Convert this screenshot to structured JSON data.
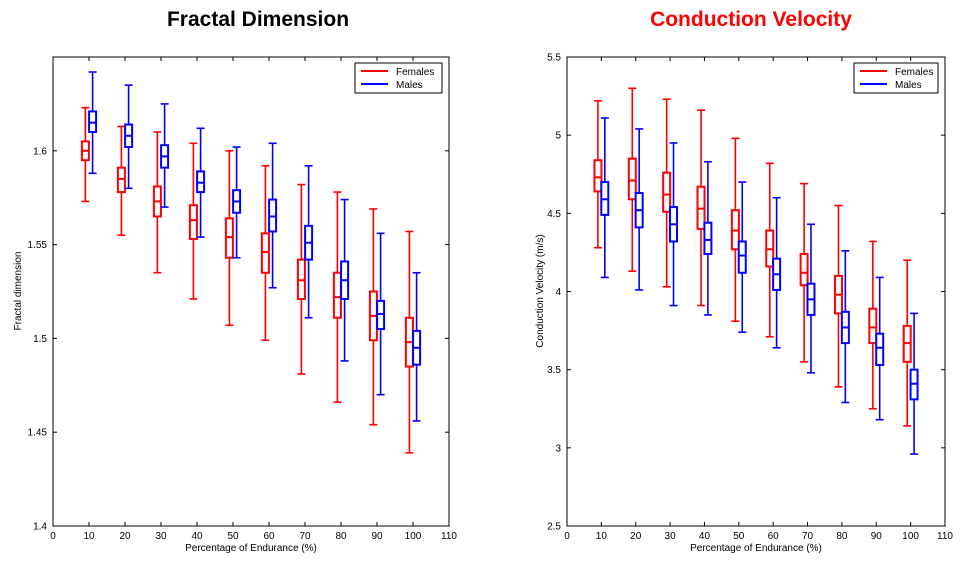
{
  "chart_data": [
    {
      "type": "boxplot",
      "title": "Fractal Dimension",
      "xlabel": "Percentage of Endurance (%)",
      "ylabel": "Fractal dimension",
      "xlim": [
        0,
        110
      ],
      "ylim": [
        1.4,
        1.65
      ],
      "xticks": [
        "0",
        "10",
        "20",
        "30",
        "40",
        "50",
        "60",
        "70",
        "80",
        "90",
        "100",
        "110"
      ],
      "yticks": [
        "1.4",
        "1.45",
        "1.5",
        "1.55",
        "1.6"
      ],
      "grid": false,
      "legend": "top-right",
      "colors": {
        "title": "#000000",
        "Females": "#ff0000",
        "Males": "#0000ff"
      },
      "series": [
        {
          "name": "Females",
          "x": [
            9,
            19,
            29,
            39,
            49,
            59,
            69,
            79,
            89,
            99
          ],
          "min": [
            1.573,
            1.555,
            1.535,
            1.521,
            1.507,
            1.499,
            1.481,
            1.466,
            1.454,
            1.439
          ],
          "q1": [
            1.595,
            1.578,
            1.565,
            1.553,
            1.543,
            1.535,
            1.521,
            1.511,
            1.499,
            1.485
          ],
          "median": [
            1.6,
            1.585,
            1.573,
            1.563,
            1.554,
            1.546,
            1.531,
            1.522,
            1.512,
            1.498
          ],
          "q3": [
            1.605,
            1.591,
            1.581,
            1.571,
            1.564,
            1.556,
            1.542,
            1.535,
            1.525,
            1.511
          ],
          "max": [
            1.623,
            1.613,
            1.61,
            1.604,
            1.6,
            1.592,
            1.582,
            1.578,
            1.569,
            1.557
          ]
        },
        {
          "name": "Males",
          "x": [
            11,
            21,
            31,
            41,
            51,
            61,
            71,
            81,
            91,
            101
          ],
          "min": [
            1.588,
            1.58,
            1.57,
            1.554,
            1.543,
            1.527,
            1.511,
            1.488,
            1.47,
            1.456
          ],
          "q1": [
            1.61,
            1.602,
            1.591,
            1.578,
            1.567,
            1.557,
            1.542,
            1.521,
            1.505,
            1.486
          ],
          "median": [
            1.615,
            1.608,
            1.597,
            1.583,
            1.573,
            1.565,
            1.551,
            1.531,
            1.513,
            1.495
          ],
          "q3": [
            1.621,
            1.614,
            1.603,
            1.589,
            1.579,
            1.574,
            1.56,
            1.541,
            1.52,
            1.504
          ],
          "max": [
            1.642,
            1.635,
            1.625,
            1.612,
            1.602,
            1.604,
            1.592,
            1.574,
            1.556,
            1.535
          ]
        }
      ]
    },
    {
      "type": "boxplot",
      "title": "Conduction Velocity",
      "xlabel": "Percentage of Endurance (%)",
      "ylabel": "Conduction Velocity (m/s)",
      "xlim": [
        0,
        110
      ],
      "ylim": [
        2.5,
        5.5
      ],
      "xticks": [
        "0",
        "10",
        "20",
        "30",
        "40",
        "50",
        "60",
        "70",
        "80",
        "90",
        "100",
        "110"
      ],
      "yticks": [
        "2.5",
        "3",
        "3.5",
        "4",
        "4.5",
        "5",
        "5.5"
      ],
      "grid": false,
      "legend": "top-right",
      "colors": {
        "title": "#ff0000",
        "Females": "#ff0000",
        "Males": "#0000ff"
      },
      "series": [
        {
          "name": "Females",
          "x": [
            9,
            19,
            29,
            39,
            49,
            59,
            69,
            79,
            89,
            99
          ],
          "min": [
            4.28,
            4.13,
            4.03,
            3.91,
            3.81,
            3.71,
            3.55,
            3.39,
            3.25,
            3.14
          ],
          "q1": [
            4.64,
            4.59,
            4.51,
            4.4,
            4.27,
            4.16,
            4.04,
            3.86,
            3.67,
            3.55
          ],
          "median": [
            4.73,
            4.71,
            4.62,
            4.53,
            4.39,
            4.27,
            4.12,
            3.98,
            3.77,
            3.67
          ],
          "q3": [
            4.84,
            4.85,
            4.76,
            4.67,
            4.52,
            4.39,
            4.24,
            4.1,
            3.89,
            3.78
          ],
          "max": [
            5.22,
            5.3,
            5.23,
            5.16,
            4.98,
            4.82,
            4.69,
            4.55,
            4.32,
            4.2
          ]
        },
        {
          "name": "Males",
          "x": [
            11,
            21,
            31,
            41,
            51,
            61,
            71,
            81,
            91,
            101
          ],
          "min": [
            4.09,
            4.01,
            3.91,
            3.85,
            3.74,
            3.64,
            3.48,
            3.29,
            3.18,
            2.96
          ],
          "q1": [
            4.49,
            4.41,
            4.32,
            4.24,
            4.12,
            4.01,
            3.85,
            3.67,
            3.53,
            3.31
          ],
          "median": [
            4.59,
            4.52,
            4.43,
            4.33,
            4.23,
            4.11,
            3.95,
            3.77,
            3.64,
            3.41
          ],
          "q3": [
            4.7,
            4.63,
            4.54,
            4.44,
            4.32,
            4.21,
            4.05,
            3.87,
            3.73,
            3.5
          ],
          "max": [
            5.11,
            5.04,
            4.95,
            4.83,
            4.7,
            4.6,
            4.43,
            4.26,
            4.09,
            3.86
          ]
        }
      ]
    }
  ]
}
